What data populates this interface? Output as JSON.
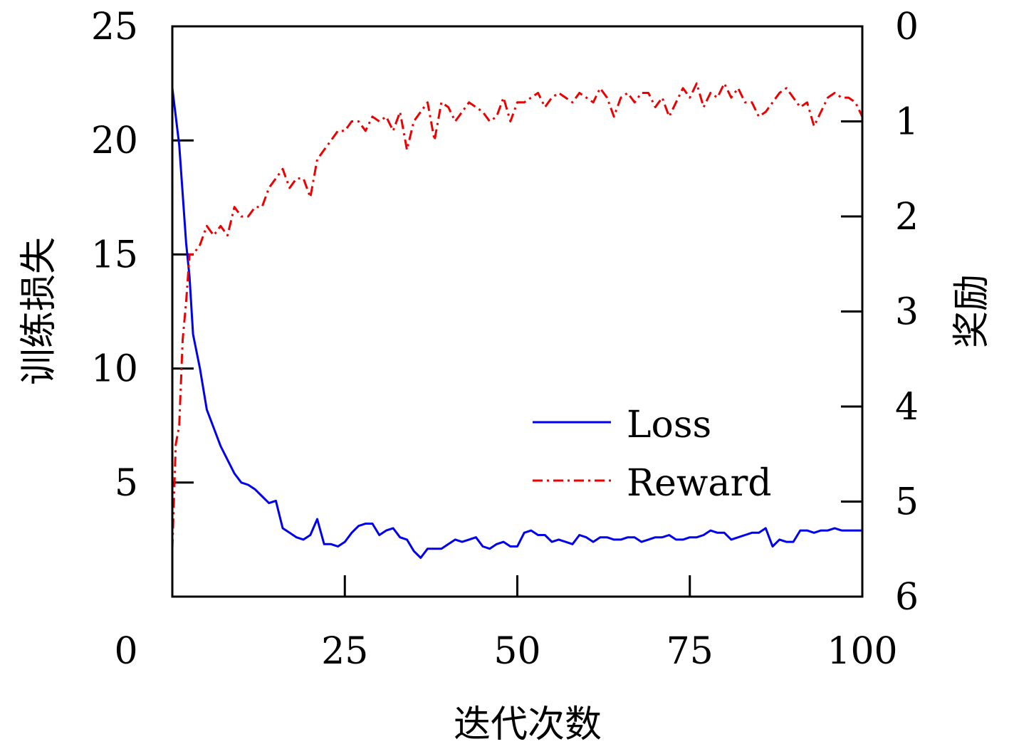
{
  "chart_data": {
    "type": "line",
    "xlabel": "迭代次数",
    "ylabel_left": "训练损失",
    "ylabel_right": "奖励",
    "x_range": [
      0,
      100
    ],
    "x_tick_labels": [
      "0",
      "25",
      "50",
      "75",
      "100"
    ],
    "y_left_range": [
      0,
      25
    ],
    "y_left_tick_labels": [
      "5",
      "10",
      "15",
      "20",
      "25"
    ],
    "y_right_range": [
      6,
      0
    ],
    "y_right_inverted": true,
    "y_right_tick_labels": [
      "0",
      "1",
      "2",
      "3",
      "4",
      "5",
      "6"
    ],
    "grid": false,
    "legend_position": "lower-right",
    "series": [
      {
        "name": "Loss",
        "axis": "left",
        "color": "#0000ee",
        "style": "solid",
        "x": [
          0,
          1,
          2,
          2.5,
          3,
          4,
          5,
          6,
          7,
          8,
          9,
          10,
          11,
          12,
          13,
          14,
          15,
          16,
          17,
          18,
          19,
          20,
          21,
          22,
          23,
          24,
          25,
          26,
          27,
          28,
          29,
          30,
          31,
          32,
          33,
          34,
          35,
          36,
          37,
          38,
          39,
          40,
          41,
          42,
          43,
          44,
          45,
          46,
          47,
          48,
          49,
          50,
          51,
          52,
          53,
          54,
          55,
          56,
          57,
          58,
          59,
          60,
          61,
          62,
          63,
          64,
          65,
          66,
          67,
          68,
          69,
          70,
          71,
          72,
          73,
          74,
          75,
          76,
          77,
          78,
          79,
          80,
          81,
          82,
          83,
          84,
          85,
          86,
          87,
          88,
          89,
          90,
          91,
          92,
          93,
          94,
          95,
          96,
          97,
          98,
          99,
          100
        ],
        "values": [
          22.3,
          19.8,
          15.5,
          14.0,
          11.5,
          10.0,
          8.2,
          7.4,
          6.6,
          6.0,
          5.4,
          5.0,
          4.9,
          4.7,
          4.4,
          4.1,
          4.2,
          3.0,
          2.8,
          2.6,
          2.5,
          2.7,
          3.4,
          2.3,
          2.3,
          2.2,
          2.4,
          2.8,
          3.1,
          3.2,
          3.2,
          2.7,
          2.9,
          3.0,
          2.6,
          2.5,
          2.0,
          1.7,
          2.1,
          2.1,
          2.1,
          2.3,
          2.5,
          2.4,
          2.5,
          2.6,
          2.2,
          2.1,
          2.3,
          2.4,
          2.2,
          2.2,
          2.8,
          2.9,
          2.7,
          2.7,
          2.4,
          2.5,
          2.4,
          2.3,
          2.7,
          2.6,
          2.4,
          2.6,
          2.6,
          2.5,
          2.5,
          2.6,
          2.6,
          2.4,
          2.5,
          2.6,
          2.6,
          2.7,
          2.5,
          2.5,
          2.6,
          2.6,
          2.7,
          2.9,
          2.8,
          2.8,
          2.5,
          2.6,
          2.7,
          2.8,
          2.8,
          3.0,
          2.2,
          2.5,
          2.4,
          2.4,
          2.9,
          2.9,
          2.8,
          2.9,
          2.9,
          3.0,
          2.9,
          2.9,
          2.9,
          2.9
        ]
      },
      {
        "name": "Reward",
        "axis": "right",
        "color": "#ee0000",
        "style": "dashdot",
        "x": [
          0,
          0.5,
          1,
          1.5,
          2,
          2.5,
          3,
          4,
          5,
          6,
          7,
          8,
          9,
          10,
          11,
          12,
          13,
          14,
          15,
          16,
          17,
          18,
          19,
          20,
          21,
          22,
          23,
          24,
          25,
          26,
          27,
          28,
          29,
          30,
          31,
          32,
          33,
          34,
          35,
          36,
          37,
          38,
          39,
          40,
          41,
          42,
          43,
          44,
          45,
          46,
          47,
          48,
          49,
          50,
          51,
          52,
          53,
          54,
          55,
          56,
          57,
          58,
          59,
          60,
          61,
          62,
          63,
          64,
          65,
          66,
          67,
          68,
          69,
          70,
          71,
          72,
          73,
          74,
          75,
          76,
          77,
          78,
          79,
          80,
          81,
          82,
          83,
          84,
          85,
          86,
          87,
          88,
          89,
          90,
          91,
          92,
          93,
          94,
          95,
          96,
          97,
          98,
          99,
          100
        ],
        "values": [
          5.5,
          4.4,
          4.2,
          3.3,
          2.9,
          2.4,
          2.4,
          2.3,
          2.1,
          2.2,
          2.1,
          2.2,
          1.9,
          2.0,
          2.0,
          1.9,
          1.9,
          1.7,
          1.6,
          1.5,
          1.7,
          1.6,
          1.6,
          1.8,
          1.4,
          1.3,
          1.2,
          1.1,
          1.1,
          1.0,
          1.0,
          1.1,
          0.95,
          1.0,
          0.95,
          1.1,
          0.9,
          1.3,
          1.0,
          0.9,
          0.8,
          1.2,
          0.8,
          0.85,
          1.0,
          0.9,
          0.8,
          0.85,
          0.9,
          1.0,
          0.95,
          0.75,
          1.0,
          0.8,
          0.8,
          0.75,
          0.7,
          0.85,
          0.75,
          0.7,
          0.75,
          0.8,
          0.7,
          0.75,
          0.8,
          0.65,
          0.75,
          0.95,
          0.75,
          0.7,
          0.8,
          0.7,
          0.7,
          0.85,
          0.75,
          0.95,
          0.8,
          0.65,
          0.75,
          0.6,
          0.85,
          0.7,
          0.75,
          0.6,
          0.75,
          0.65,
          0.8,
          0.8,
          0.95,
          0.9,
          0.8,
          0.7,
          0.65,
          0.75,
          0.85,
          0.8,
          1.05,
          0.9,
          0.75,
          0.7,
          0.75,
          0.75,
          0.8,
          0.95
        ]
      }
    ]
  }
}
